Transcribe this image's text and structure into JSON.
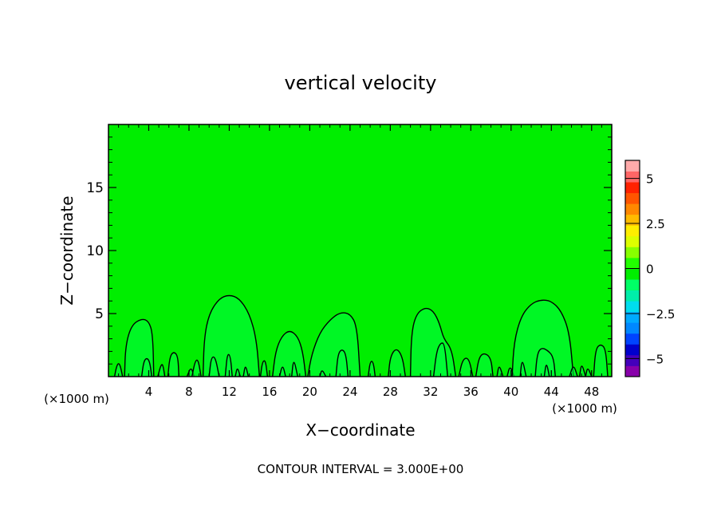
{
  "chart_data": {
    "type": "heatmap",
    "title": "vertical velocity",
    "xlabel": "X−coordinate",
    "ylabel": "Z−coordinate",
    "xunit_left": "(×1000 m)",
    "xunit_right": "(×1000 m)",
    "footer": "CONTOUR INTERVAL = 3.000E+00",
    "xlim": [
      0,
      50
    ],
    "ylim": [
      0,
      20
    ],
    "xticks": [
      4,
      8,
      12,
      16,
      20,
      24,
      28,
      32,
      36,
      40,
      44,
      48
    ],
    "xtick_labels": [
      "4",
      "8",
      "12",
      "16",
      "20",
      "24",
      "28",
      "32",
      "36",
      "40",
      "44",
      "48"
    ],
    "yticks": [
      5,
      10,
      15
    ],
    "ytick_labels": [
      "5",
      "10",
      "15"
    ],
    "background_value": 0,
    "colorbar": {
      "range": [
        -6,
        6
      ],
      "tick_values": [
        5,
        2.5,
        0,
        -2.5,
        -5
      ],
      "tick_labels": [
        "5",
        "2.5",
        "0",
        "−2.5",
        "−5"
      ],
      "colors": [
        "#8800aa",
        "#4400bb",
        "#0000cc",
        "#0044ff",
        "#0088ff",
        "#00aaff",
        "#00ddee",
        "#00eeaa",
        "#00ff66",
        "#00ee00",
        "#22ff00",
        "#88ff00",
        "#ddff00",
        "#ffee00",
        "#ffbb00",
        "#ff8800",
        "#ff5500",
        "#ff2200",
        "#ff6666",
        "#ffaaaa"
      ]
    },
    "colors": {
      "field": "#00ee00",
      "updraft": "#00ff44",
      "contour": "#000000"
    },
    "contours": [
      {
        "x": [
          0.6,
          0.8,
          1.0,
          1.2,
          1.4
        ],
        "y": [
          0,
          0.8,
          1.1,
          0.8,
          0
        ]
      },
      {
        "x": [
          1.6,
          1.7,
          2.3,
          3.3,
          4.0,
          4.4,
          4.5
        ],
        "y": [
          0,
          2.5,
          4.1,
          4.6,
          4.4,
          3.4,
          0
        ]
      },
      {
        "x": [
          3.3,
          3.5,
          3.8,
          4.1,
          4.3
        ],
        "y": [
          0,
          1.2,
          1.5,
          1.2,
          0
        ]
      },
      {
        "x": [
          4.9,
          5.2,
          5.4,
          5.6
        ],
        "y": [
          0,
          0.9,
          1.0,
          0
        ]
      },
      {
        "x": [
          5.9,
          6.1,
          6.5,
          6.9,
          7.0
        ],
        "y": [
          0,
          1.6,
          2.0,
          1.6,
          0
        ]
      },
      {
        "x": [
          7.8,
          8.2,
          8.5
        ],
        "y": [
          0,
          0.8,
          0
        ]
      },
      {
        "x": [
          8.3,
          8.6,
          8.9,
          9.2
        ],
        "y": [
          0,
          1.2,
          1.4,
          0
        ]
      },
      {
        "x": [
          9.4,
          9.5,
          10.0,
          11.0,
          12.0,
          13.0,
          14.0,
          14.7,
          15.0
        ],
        "y": [
          0,
          3.0,
          5.0,
          6.2,
          6.5,
          6.2,
          5.0,
          3.0,
          0
        ]
      },
      {
        "x": [
          10.0,
          10.2,
          10.6,
          11.0
        ],
        "y": [
          0,
          1.5,
          1.6,
          0
        ]
      },
      {
        "x": [
          11.6,
          11.8,
          12.1,
          12.3
        ],
        "y": [
          0,
          1.8,
          1.7,
          0
        ]
      },
      {
        "x": [
          12.6,
          12.8,
          13.1
        ],
        "y": [
          0,
          0.8,
          0
        ]
      },
      {
        "x": [
          13.4,
          13.6,
          13.9
        ],
        "y": [
          0,
          1.0,
          0
        ]
      },
      {
        "x": [
          15.1,
          15.3,
          15.6,
          15.8
        ],
        "y": [
          0,
          1.2,
          1.3,
          0
        ]
      },
      {
        "x": [
          16.3,
          16.6,
          17.2,
          18.0,
          18.8,
          19.3,
          19.6
        ],
        "y": [
          0,
          2.0,
          3.2,
          3.7,
          3.2,
          2.0,
          0
        ]
      },
      {
        "x": [
          17.0,
          17.3,
          17.6
        ],
        "y": [
          0,
          1.0,
          0
        ]
      },
      {
        "x": [
          18.2,
          18.4,
          18.8
        ],
        "y": [
          0,
          1.5,
          0
        ]
      },
      {
        "x": [
          19.8,
          20.2,
          21.0,
          22.0,
          23.0,
          24.0,
          24.7,
          25.0
        ],
        "y": [
          0,
          1.8,
          3.5,
          4.5,
          5.1,
          5.0,
          4.0,
          0
        ]
      },
      {
        "x": [
          21.0,
          21.2,
          21.6
        ],
        "y": [
          0,
          0.6,
          0
        ]
      },
      {
        "x": [
          22.6,
          22.8,
          23.2,
          23.6,
          23.8
        ],
        "y": [
          0,
          1.8,
          2.2,
          1.8,
          0
        ]
      },
      {
        "x": [
          25.8,
          26.0,
          26.3,
          26.5
        ],
        "y": [
          0,
          1.2,
          1.2,
          0
        ]
      },
      {
        "x": [
          27.8,
          28.0,
          28.6,
          29.2,
          29.5
        ],
        "y": [
          0,
          1.6,
          2.3,
          1.6,
          0
        ]
      },
      {
        "x": [
          30.0,
          30.1,
          30.6,
          31.5,
          32.3,
          32.9,
          33.3,
          34.1,
          34.5
        ],
        "y": [
          0,
          3.5,
          5.0,
          5.5,
          5.2,
          4.2,
          3.0,
          2.2,
          0
        ]
      },
      {
        "x": [
          32.3,
          32.6,
          33.0,
          33.4,
          33.7
        ],
        "y": [
          0,
          2.0,
          2.7,
          2.6,
          0
        ]
      },
      {
        "x": [
          34.8,
          35.2,
          35.8,
          36.2
        ],
        "y": [
          0,
          1.4,
          1.5,
          0
        ]
      },
      {
        "x": [
          36.5,
          36.8,
          37.3,
          38.0,
          38.2
        ],
        "y": [
          0,
          1.5,
          1.9,
          1.5,
          0
        ]
      },
      {
        "x": [
          38.6,
          38.8,
          39.2
        ],
        "y": [
          0,
          1.0,
          0
        ]
      },
      {
        "x": [
          39.6,
          39.9,
          40.3
        ],
        "y": [
          0,
          0.9,
          0
        ]
      },
      {
        "x": [
          40.1,
          40.3,
          41.0,
          42.0,
          43.0,
          44.0,
          45.0,
          45.8,
          46.2
        ],
        "y": [
          0,
          2.8,
          4.8,
          5.8,
          6.1,
          6.0,
          5.2,
          3.5,
          0
        ]
      },
      {
        "x": [
          40.9,
          41.1,
          41.5
        ],
        "y": [
          0,
          1.5,
          0
        ]
      },
      {
        "x": [
          42.4,
          42.6,
          43.0,
          43.6,
          44.2,
          44.4
        ],
        "y": [
          0,
          1.8,
          2.3,
          2.1,
          1.6,
          0
        ]
      },
      {
        "x": [
          43.3,
          43.5,
          43.8
        ],
        "y": [
          0,
          1.2,
          0
        ]
      },
      {
        "x": [
          45.8,
          46.2,
          46.6
        ],
        "y": [
          0,
          1.0,
          0
        ]
      },
      {
        "x": [
          46.8,
          47.0,
          47.4
        ],
        "y": [
          0,
          1.1,
          0
        ]
      },
      {
        "x": [
          47.4,
          47.6,
          48.0
        ],
        "y": [
          0,
          0.8,
          0
        ]
      },
      {
        "x": [
          48.2,
          48.4,
          48.9,
          49.4,
          49.6
        ],
        "y": [
          0,
          2.2,
          2.6,
          2.2,
          0
        ]
      }
    ]
  }
}
